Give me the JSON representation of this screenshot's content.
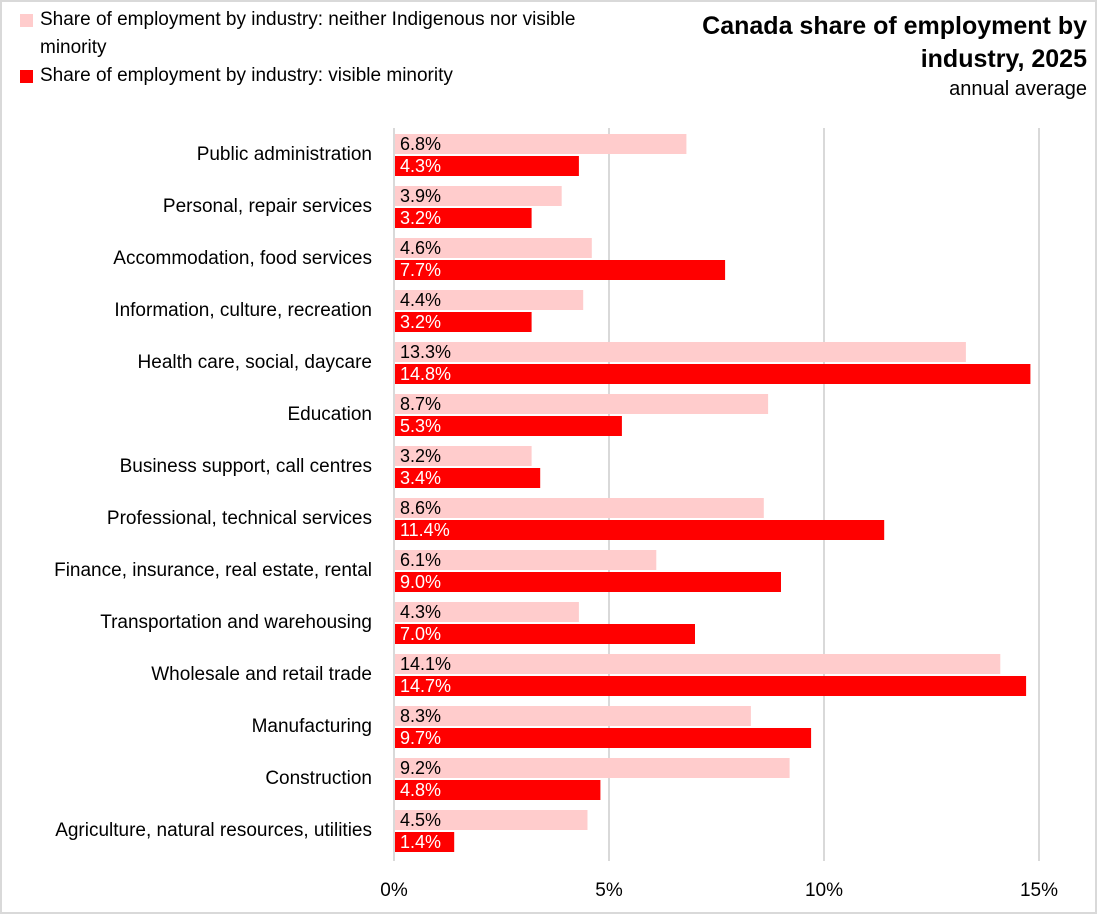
{
  "chart_data": {
    "type": "bar",
    "orientation": "horizontal",
    "title": "Canada share of employment by industry, 2025",
    "subtitle": "annual average",
    "xlabel": "",
    "ylabel": "",
    "xlim": [
      0,
      15
    ],
    "x_ticks": [
      0,
      5,
      10,
      15
    ],
    "x_tick_labels": [
      "0%",
      "5%",
      "10%",
      "15%"
    ],
    "grid": true,
    "legend_position": "top-left",
    "categories": [
      "Public administration",
      "Personal, repair services",
      "Accommodation, food services",
      "Information, culture, recreation",
      "Health care, social, daycare",
      "Education",
      "Business support, call centres",
      "Professional, technical services",
      "Finance, insurance, real estate, rental",
      "Transportation and warehousing",
      "Wholesale and retail trade",
      "Manufacturing",
      "Construction",
      "Agriculture, natural resources, utilities"
    ],
    "series": [
      {
        "name": "Share of employment by industry: neither Indigenous nor visible minority",
        "color": "#ffcccc",
        "label_color": "#000000",
        "values": [
          6.8,
          3.9,
          4.6,
          4.4,
          13.3,
          8.7,
          3.2,
          8.6,
          6.1,
          4.3,
          14.1,
          8.3,
          9.2,
          4.5
        ],
        "labels": [
          "6.8%",
          "3.9%",
          "4.6%",
          "4.4%",
          "13.3%",
          "8.7%",
          "3.2%",
          "8.6%",
          "6.1%",
          "4.3%",
          "14.1%",
          "8.3%",
          "9.2%",
          "4.5%"
        ]
      },
      {
        "name": "Share of employment by industry: visible minority",
        "color": "#ff0000",
        "label_color": "#ffffff",
        "values": [
          4.3,
          3.2,
          7.7,
          3.2,
          14.8,
          5.3,
          3.4,
          11.4,
          9.0,
          7.0,
          14.7,
          9.7,
          4.8,
          1.4
        ],
        "labels": [
          "4.3%",
          "3.2%",
          "7.7%",
          "3.2%",
          "14.8%",
          "5.3%",
          "3.4%",
          "11.4%",
          "9.0%",
          "7.0%",
          "14.7%",
          "9.7%",
          "4.8%",
          "1.4%"
        ]
      }
    ]
  },
  "legend": {
    "items": [
      {
        "label": "Share of employment by industry: neither Indigenous nor visible minority",
        "color": "#ffcccc"
      },
      {
        "label": "Share of employment by industry: visible minority",
        "color": "#ff0000"
      }
    ]
  },
  "header": {
    "title": "Canada share of employment by industry, 2025",
    "subtitle": "annual average"
  },
  "colors": {
    "gridline": "#d9d9d9",
    "border": "#d9d9d9"
  }
}
